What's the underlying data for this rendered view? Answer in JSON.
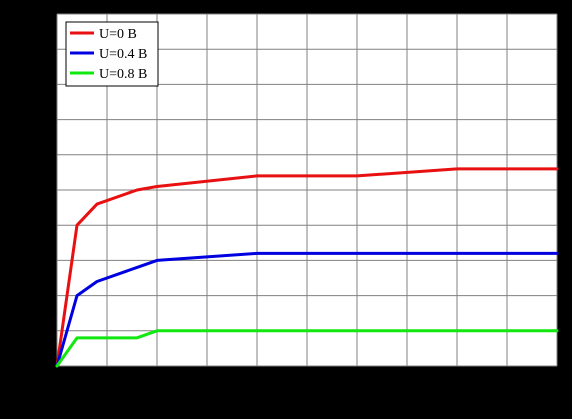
{
  "chart_data": {
    "type": "line",
    "title": "",
    "xlabel": "",
    "ylabel": "",
    "xlim": [
      0,
      1000
    ],
    "ylim": [
      0,
      4000
    ],
    "x_ticks": [
      0,
      100,
      200,
      300,
      400,
      500,
      600,
      700,
      800,
      900,
      1000
    ],
    "y_ticks": [
      0,
      400,
      800,
      1200,
      1600,
      2000,
      2400,
      2800,
      3200,
      3600,
      4000
    ],
    "grid": true,
    "legend_position": "top-left",
    "background_color": "#000000",
    "plot_background_color": "#ffffff",
    "grid_color": "#808080",
    "series": [
      {
        "name": "U=0 B",
        "color": "#e81010",
        "x": [
          0,
          40,
          80,
          160,
          200,
          400,
          600,
          800,
          1000
        ],
        "y": [
          0,
          1600,
          1840,
          2000,
          2040,
          2160,
          2160,
          2240,
          2240
        ]
      },
      {
        "name": "U=0.4 B",
        "color": "#0000e0",
        "x": [
          0,
          40,
          80,
          160,
          200,
          400,
          600,
          800,
          1000
        ],
        "y": [
          0,
          800,
          960,
          1120,
          1200,
          1280,
          1280,
          1280,
          1280
        ]
      },
      {
        "name": "U=0.8 B",
        "color": "#10e810",
        "x": [
          0,
          40,
          80,
          160,
          200,
          400,
          600,
          800,
          1000
        ],
        "y": [
          0,
          320,
          320,
          320,
          400,
          400,
          400,
          400,
          400
        ]
      }
    ]
  }
}
